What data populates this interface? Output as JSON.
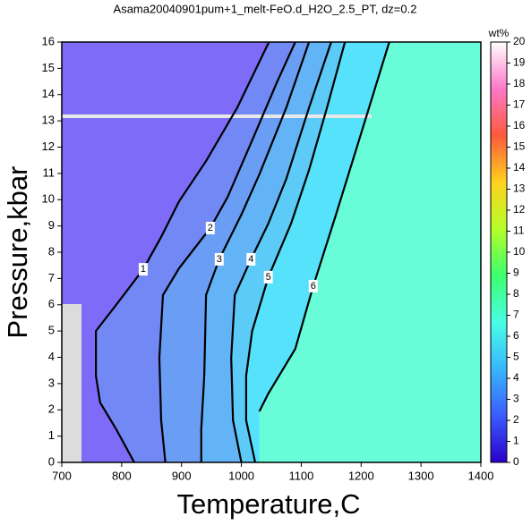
{
  "chart_data": {
    "type": "contour",
    "title": "Asama20040901pum+1_melt-FeO.d_H2O_2.5_PT, dz=0.2",
    "x_label": "Temperature,C",
    "y_label": "Pressure,kbar",
    "colorbar_label": "wt%",
    "xlim": [
      700,
      1400
    ],
    "xticks": [
      700,
      800,
      900,
      1000,
      1100,
      1200,
      1300,
      1400
    ],
    "ylim": [
      0,
      16
    ],
    "yticks": [
      0,
      1,
      2,
      3,
      4,
      5,
      6,
      7,
      8,
      9,
      10,
      11,
      12,
      13,
      14,
      15,
      16
    ],
    "clim": [
      0,
      20
    ],
    "cticks": [
      0,
      1,
      2,
      3,
      4,
      5,
      6,
      7,
      8,
      9,
      10,
      11,
      12,
      13,
      14,
      15,
      16,
      17,
      18,
      19,
      20
    ],
    "colorbar_colors": [
      "#2a00c8",
      "#3a5cff",
      "#38b6ff",
      "#48ffe6",
      "#3cff6e",
      "#b4ff28",
      "#ffd21e",
      "#ff5a3c",
      "#ff78c8",
      "#ffffff"
    ],
    "band_colors": [
      "#7e6cf8",
      "#7288f4",
      "#6a9df4",
      "#63b4f6",
      "#5ccbf8",
      "#56e2fa",
      "#68fcd8"
    ],
    "contours": [
      {
        "level": 1,
        "x": [
          821,
          791,
          764,
          757,
          757,
          791,
          836,
          866,
          896,
          941,
          993,
          1046
        ],
        "y": [
          0,
          1.26,
          2.28,
          3.3,
          5.0,
          6.0,
          7.35,
          8.58,
          9.94,
          11.47,
          13.5,
          16
        ]
      },
      {
        "level": 2,
        "x": [
          873,
          866,
          863,
          869,
          896,
          948,
          977,
          1016,
          1060,
          1090
        ],
        "y": [
          0,
          1.6,
          3.98,
          6.37,
          7.39,
          8.92,
          10.1,
          12.15,
          14.5,
          16
        ]
      },
      {
        "level": 3,
        "x": [
          933,
          933,
          938,
          941,
          963,
          1000,
          1030,
          1075,
          1113
        ],
        "y": [
          0,
          1.26,
          3.3,
          6.37,
          7.73,
          9.43,
          10.96,
          13.5,
          16
        ]
      },
      {
        "level": 4,
        "x": [
          1000,
          986,
          983,
          989,
          1016,
          1045,
          1075,
          1113,
          1150
        ],
        "y": [
          0,
          1.6,
          3.98,
          6.37,
          7.73,
          9.09,
          10.79,
          13.5,
          16
        ]
      },
      {
        "level": 5,
        "x": [
          1023,
          1008,
          1008,
          1018,
          1045,
          1083,
          1113,
          1143,
          1173
        ],
        "y": [
          0,
          1.6,
          3.3,
          5.0,
          7.05,
          9.09,
          11.13,
          13.5,
          16
        ]
      },
      {
        "level": 6,
        "x": [
          1030,
          1045,
          1090,
          1120,
          1158,
          1195,
          1247
        ],
        "y": [
          1.94,
          2.62,
          4.32,
          6.71,
          9.43,
          12.15,
          16
        ]
      }
    ]
  }
}
